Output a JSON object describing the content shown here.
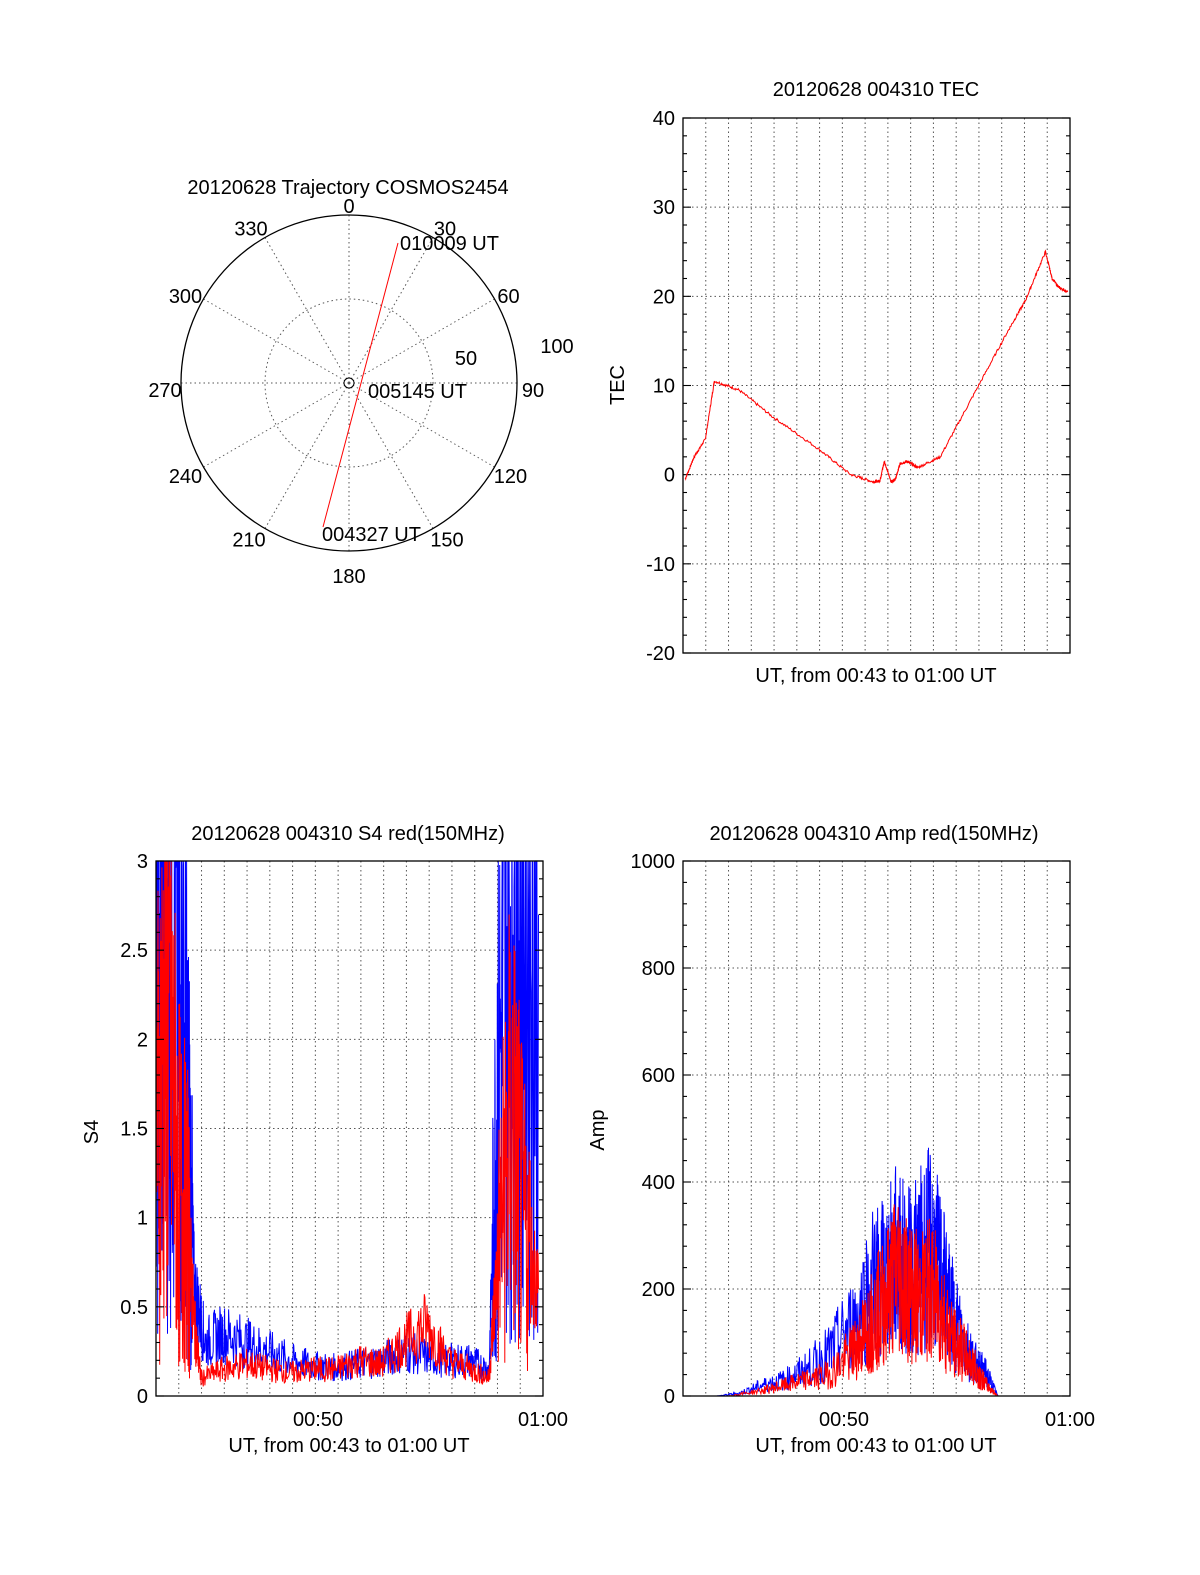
{
  "chart_data": [
    {
      "type": "polar",
      "title": "20120628 Trajectory COSMOS2454",
      "azimuth_labels": [
        "0",
        "30",
        "60",
        "90",
        "120",
        "150",
        "180",
        "210",
        "240",
        "270",
        "300",
        "330"
      ],
      "radial_labels": [
        "50",
        "100"
      ],
      "series": [
        {
          "color": "#ff0000",
          "points": [
            {
              "az": 193,
              "el": 4
            },
            {
              "az": 17,
              "el": 2
            }
          ]
        }
      ],
      "annotations": [
        "010009 UT",
        "005145 UT",
        "004327 UT"
      ]
    },
    {
      "type": "line",
      "title": "20120628 004310 TEC",
      "xlabel": "UT, from 00:43 to 01:00 UT",
      "ylabel": "TEC",
      "xlim": [
        0,
        17.3
      ],
      "ylim": [
        -20,
        40
      ],
      "yticks": [
        "-20",
        "-10",
        "0",
        "10",
        "20",
        "30",
        "40"
      ],
      "series": [
        {
          "color": "#ff0000",
          "x": [
            0.1,
            0.5,
            1.0,
            1.4,
            2.5,
            4.0,
            6.0,
            7.5,
            8.5,
            8.8,
            9.0,
            9.3,
            9.5,
            9.7,
            10.0,
            10.5,
            11.5,
            13.0,
            14.5,
            15.3,
            16.2,
            16.5,
            16.8,
            17.2
          ],
          "y": [
            -0.5,
            2,
            4,
            10.5,
            9.5,
            6.5,
            3,
            0,
            -0.8,
            -0.7,
            1.5,
            -0.8,
            -0.5,
            1.2,
            1.5,
            0.8,
            2,
            9,
            16,
            19.5,
            25,
            22,
            21,
            20.5
          ]
        }
      ]
    },
    {
      "type": "line",
      "title": "20120628 004310 S4 red(150MHz)",
      "xlabel": "UT, from 00:43 to 01:00 UT",
      "ylabel": "S4",
      "xlim": [
        0,
        17.2
      ],
      "ylim": [
        0,
        3
      ],
      "xticks": [
        "00:50",
        "01:00"
      ],
      "yticks": [
        "0",
        "0.5",
        "1",
        "1.5",
        "2",
        "2.5",
        "3"
      ],
      "series": [
        {
          "color": "#0000ff",
          "x": [
            0,
            0.5,
            1.0,
            1.4,
            1.7,
            2.2,
            3.0,
            4.0,
            5.0,
            6.0,
            7.0,
            8.0,
            9.0,
            10.0,
            11.0,
            12.0,
            13.0,
            14.0,
            14.8,
            15.2,
            15.8,
            16.3,
            17.0
          ],
          "y": [
            2.5,
            3.0,
            2.4,
            1.6,
            0.6,
            0.3,
            0.35,
            0.3,
            0.25,
            0.2,
            0.17,
            0.16,
            0.18,
            0.2,
            0.25,
            0.22,
            0.2,
            0.2,
            0.15,
            1.8,
            2.8,
            3.0,
            2.7
          ]
        },
        {
          "color": "#ff0000",
          "x": [
            0,
            0.5,
            1.0,
            1.4,
            1.7,
            2.0,
            3.0,
            4.0,
            5.0,
            6.0,
            7.0,
            8.0,
            9.0,
            10.0,
            11.0,
            12.0,
            13.0,
            14.0,
            14.8,
            15.2,
            15.8,
            16.3,
            17.0
          ],
          "y": [
            1.5,
            2.2,
            1.2,
            1.0,
            0.4,
            0.1,
            0.15,
            0.18,
            0.15,
            0.13,
            0.15,
            0.15,
            0.2,
            0.18,
            0.3,
            0.4,
            0.2,
            0.15,
            0.1,
            0.8,
            1.6,
            1.0,
            0.6
          ]
        }
      ]
    },
    {
      "type": "line",
      "title": "20120628 004310 Amp red(150MHz)",
      "xlabel": "UT, from 00:43 to 01:00 UT",
      "ylabel": "Amp",
      "xlim": [
        0,
        17.2
      ],
      "ylim": [
        0,
        1000
      ],
      "xticks": [
        "00:50",
        "01:00"
      ],
      "yticks": [
        "0",
        "200",
        "400",
        "600",
        "800",
        "1000"
      ],
      "series": [
        {
          "color": "#0000ff",
          "x": [
            0,
            1.5,
            2.5,
            3.5,
            4.5,
            5.5,
            6.5,
            7.5,
            8.5,
            9.0,
            9.5,
            10.0,
            10.5,
            11.0,
            11.5,
            12.0,
            12.5,
            13.0,
            13.5,
            14.0,
            17.2
          ],
          "y": [
            0,
            0,
            5,
            20,
            30,
            50,
            80,
            130,
            220,
            220,
            260,
            230,
            250,
            280,
            220,
            150,
            100,
            60,
            40,
            0,
            0
          ]
        },
        {
          "color": "#ff0000",
          "x": [
            0,
            2.0,
            3.5,
            4.5,
            5.5,
            6.5,
            7.5,
            8.0,
            8.5,
            9.0,
            9.5,
            10.0,
            10.5,
            11.0,
            11.5,
            12.0,
            12.5,
            13.0,
            13.5,
            14.0,
            17.2
          ],
          "y": [
            0,
            0,
            10,
            20,
            30,
            40,
            80,
            110,
            150,
            180,
            240,
            200,
            180,
            200,
            160,
            100,
            80,
            50,
            20,
            0,
            0
          ]
        }
      ]
    }
  ]
}
